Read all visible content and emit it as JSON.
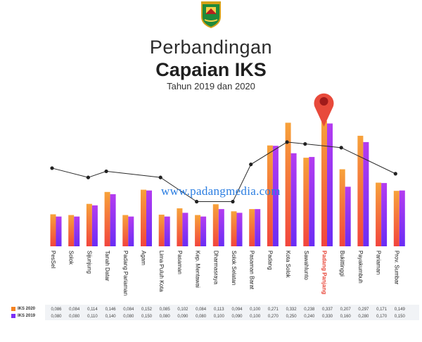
{
  "header": {
    "title_line1": "Perbandingan",
    "title_line2": "Capaian IKS",
    "subtitle": "Tahun 2019 dan 2020"
  },
  "logo": {
    "caption": "PADANG PANJANG",
    "name": "padang-panjang-crest"
  },
  "watermark": "www.padangmedia.com",
  "colors": {
    "iks2020": "#f58220",
    "iks2019": "#7b2ff7",
    "highlight_label": "#e8473a",
    "pin": "#e84a3b",
    "line": "#2a2a2a"
  },
  "chart_data": {
    "type": "bar",
    "categories": [
      "PesSel",
      "Solok",
      "Sijunjung",
      "Tanah Datar",
      "Padang Pariaman",
      "Agam",
      "Lima Puluh Kota",
      "Pasaman",
      "Kep. Mentawai",
      "Dharmasraya",
      "Solok Selatan",
      "Pasaman Barat",
      "Padang",
      "Kota Solok",
      "Sawahlunto",
      "Padang Panjang",
      "Bukittinggi",
      "Payakumbuh",
      "Pariaman",
      "Prov. Sumbar"
    ],
    "highlight_category": "Padang Panjang",
    "series": [
      {
        "name": "IKS 2020",
        "values": [
          0.086,
          0.084,
          0.114,
          0.146,
          0.084,
          0.152,
          0.085,
          0.102,
          0.084,
          0.113,
          0.094,
          0.1,
          0.271,
          0.332,
          0.238,
          0.337,
          0.207,
          0.297,
          0.171,
          0.149
        ],
        "labels": [
          "0,086",
          "0,084",
          "0,114",
          "0,146",
          "0,084",
          "0,152",
          "0,085",
          "0,102",
          "0,084",
          "0,113",
          "0,094",
          "0,100",
          "0,271",
          "0,332",
          "0,238",
          "0,337",
          "0,207",
          "0,297",
          "0,171",
          "0,149"
        ]
      },
      {
        "name": "IKS 2019",
        "values": [
          0.08,
          0.08,
          0.11,
          0.14,
          0.08,
          0.15,
          0.08,
          0.09,
          0.08,
          0.1,
          0.09,
          0.1,
          0.27,
          0.25,
          0.24,
          0.33,
          0.16,
          0.28,
          0.17,
          0.15
        ],
        "labels": [
          "0,080",
          "0,080",
          "0,110",
          "0,140",
          "0,080",
          "0,150",
          "0,080",
          "0,090",
          "0,080",
          "0,100",
          "0,090",
          "0,100",
          "0,270",
          "0,250",
          "0,240",
          "0,330",
          "0,160",
          "0,280",
          "0,170",
          "0,150"
        ]
      }
    ],
    "trend_line": [
      0.21,
      0.185,
      0.1525,
      0.185,
      0.1635,
      0.108,
      0.1,
      0.0925,
      0.104,
      0.1225,
      0.1675,
      0.1905,
      0.178,
      0.227
    ],
    "trend_line_note": "line values are in the bar axis units, read at selected categories",
    "trend_line_points": [
      {
        "category": "PesSel",
        "value": 0.21
      },
      {
        "category": "Sijunjung",
        "value": 0.185
      },
      {
        "category": "Tanah Datar",
        "value": 0.2015
      },
      {
        "category": "Lima Puluh Kota",
        "value": 0.185
      },
      {
        "category": "Kep. Mentawai",
        "value": 0.12
      },
      {
        "category": "Solok Selatan",
        "value": 0.12
      },
      {
        "category": "Pasaman Barat",
        "value": 0.22
      },
      {
        "category": "Kota Solok",
        "value": 0.28
      },
      {
        "category": "Sawahlunto",
        "value": 0.275
      },
      {
        "category": "Bukittinggi",
        "value": 0.265
      },
      {
        "category": "Prov. Sumbar",
        "value": 0.195
      }
    ],
    "ylim": [
      0,
      0.36
    ],
    "grid": false,
    "legend_placement": "bottom-left"
  }
}
